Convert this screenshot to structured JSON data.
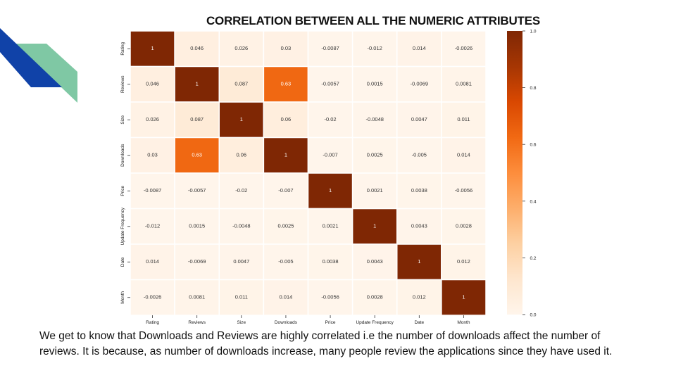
{
  "slide": {
    "title": "CORRELATION BETWEEN ALL THE NUMERIC ATTRIBUTES",
    "caption": " We get to know that Downloads and Reviews are highly correlated i.e the number of downloads affect the  number of reviews. It is because, as number of downloads increase,  many people review the applications since they have used it."
  },
  "chart_data": {
    "type": "heatmap",
    "colormap": "Oranges",
    "x_labels": [
      "Rating",
      "Reviews",
      "Size",
      "Downloads",
      "Price",
      "Update Frequency",
      "Date",
      "Month"
    ],
    "y_labels": [
      "Rating",
      "Reviews",
      "Size",
      "Downloads",
      "Price",
      "Update Frequency",
      "Date",
      "Month"
    ],
    "values": [
      [
        1,
        0.046,
        0.026,
        0.03,
        -0.0087,
        -0.012,
        0.014,
        -0.0026
      ],
      [
        0.046,
        1,
        0.087,
        0.63,
        -0.0057,
        0.0015,
        -0.0069,
        0.0081
      ],
      [
        0.026,
        0.087,
        1,
        0.06,
        -0.02,
        -0.0048,
        0.0047,
        0.011
      ],
      [
        0.03,
        0.63,
        0.06,
        1,
        -0.007,
        0.0025,
        -0.005,
        0.014
      ],
      [
        -0.0087,
        -0.0057,
        -0.02,
        -0.007,
        1,
        0.0021,
        0.0038,
        -0.0056
      ],
      [
        -0.012,
        0.0015,
        -0.0048,
        0.0025,
        0.0021,
        1,
        0.0043,
        0.0028
      ],
      [
        0.014,
        -0.0069,
        0.0047,
        -0.005,
        0.0038,
        0.0043,
        1,
        0.012
      ],
      [
        -0.0026,
        0.0081,
        0.011,
        0.014,
        -0.0056,
        0.0028,
        0.012,
        1
      ]
    ],
    "colorbar": {
      "range": [
        0.0,
        1.0
      ],
      "ticks": [
        "0.0",
        "0.2",
        "0.4",
        "0.6",
        "0.8",
        "1.0"
      ]
    },
    "annotated": true
  }
}
